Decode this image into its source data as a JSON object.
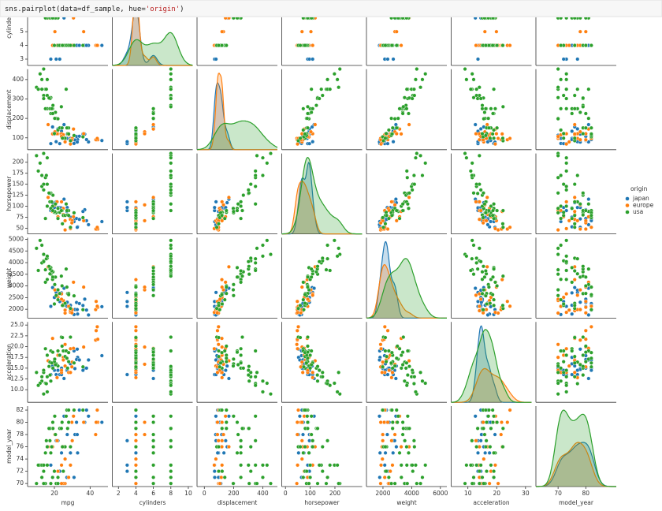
{
  "code": [
    "sns.pairplot(data=df_sample, hue=",
    "'origin'",
    ")"
  ],
  "chart_data": {
    "type": "pairplot",
    "legend_title": "origin",
    "legend_position": "right",
    "variables": [
      {
        "name": "mpg",
        "xlim": [
          5,
          50
        ],
        "xticks": [
          20,
          40
        ]
      },
      {
        "name": "cylinders",
        "xlim": [
          1.3,
          10.5
        ],
        "xticks": [
          2,
          4,
          6,
          8,
          10
        ],
        "ylim": [
          2.54,
          8.4
        ],
        "yticks": [
          3,
          4,
          5
        ]
      },
      {
        "name": "displacement",
        "xlim": [
          -50,
          500
        ],
        "xticks": [
          0,
          200,
          400
        ],
        "ylim": [
          39,
          453
        ],
        "yticks": [
          100,
          200,
          300,
          400
        ]
      },
      {
        "name": "horsepower",
        "xlim": [
          -15,
          310
        ],
        "xticks": [
          0,
          100,
          200
        ],
        "ylim": [
          37,
          220
        ],
        "yticks": [
          50,
          75,
          100,
          125,
          150,
          175,
          200
        ]
      },
      {
        "name": "weight",
        "xlim": [
          850,
          6450
        ],
        "xticks": [
          2000,
          4000,
          6000
        ],
        "ylim": [
          1620,
          5070
        ],
        "yticks": [
          2000,
          2500,
          3000,
          3500,
          4000,
          4500,
          5000
        ]
      },
      {
        "name": "acceleration",
        "xlim": [
          4.2,
          32.1
        ],
        "xticks": [
          10,
          20,
          30
        ],
        "ylim": [
          7.07,
          25.73
        ],
        "yticks": [
          {
            "value": 10,
            "label": "10.0"
          },
          {
            "value": 12.5,
            "label": "12.5"
          },
          {
            "value": 15,
            "label": "15.0"
          },
          {
            "value": 17.5,
            "label": "17.5"
          },
          {
            "value": 20,
            "label": "20.0"
          },
          {
            "value": 22.5,
            "label": "22.5"
          },
          {
            "value": 25,
            "label": "25.0"
          }
        ]
      },
      {
        "name": "model_year",
        "xlim": [
          62,
          91
        ],
        "xticks": [
          70,
          80
        ],
        "ylim": [
          69.5,
          82.65
        ],
        "yticks": [
          70,
          72,
          74,
          76,
          78,
          80,
          82
        ]
      }
    ],
    "series": [
      {
        "name": "japan",
        "color": "#1f77b4",
        "values": [
          [
            24,
            4,
            113,
            95,
            2372,
            15,
            70
          ],
          [
            27,
            4,
            97,
            88,
            2130,
            14.5,
            71
          ],
          [
            18,
            3,
            70,
            90,
            2124,
            13.5,
            73
          ],
          [
            31,
            4,
            71,
            65,
            1773,
            19,
            71
          ],
          [
            20,
            4,
            119,
            97,
            2506,
            14.5,
            72
          ],
          [
            23,
            3,
            70,
            97,
            2330,
            13.5,
            72
          ],
          [
            29,
            4,
            97,
            75,
            2171,
            16,
            75
          ],
          [
            24,
            4,
            134,
            96,
            2702,
            13.5,
            75
          ],
          [
            33,
            4,
            91,
            53,
            1795,
            17.5,
            75
          ],
          [
            19,
            6,
            156,
            108,
            2930,
            15.5,
            76
          ],
          [
            21,
            3,
            80,
            110,
            2720,
            13.5,
            77
          ],
          [
            31.5,
            4,
            89,
            71,
            1990,
            14.9,
            78
          ],
          [
            27.2,
            4,
            119,
            97,
            2300,
            14.7,
            78
          ],
          [
            22,
            6,
            146,
            97,
            2815,
            14.5,
            77
          ],
          [
            32.8,
            4,
            78,
            52,
            1985,
            19.4,
            78
          ],
          [
            39.1,
            4,
            79,
            58,
            1755,
            16.9,
            81
          ],
          [
            32.4,
            4,
            107,
            72,
            2290,
            17,
            80
          ],
          [
            46.6,
            4,
            86,
            65,
            2110,
            17.9,
            80
          ],
          [
            37,
            4,
            119,
            92,
            2434,
            15,
            80
          ],
          [
            34,
            4,
            108,
            70,
            2245,
            16.9,
            82
          ],
          [
            38,
            4,
            91,
            67,
            1965,
            15,
            82
          ],
          [
            36,
            4,
            120,
            88,
            2160,
            14.5,
            82
          ],
          [
            25.4,
            6,
            168,
            116,
            2900,
            12.6,
            81
          ]
        ]
      },
      {
        "name": "europe",
        "color": "#ff7f0e",
        "values": [
          [
            26,
            4,
            97,
            46,
            1835,
            20.5,
            70
          ],
          [
            25,
            4,
            104,
            95,
            2375,
            17.5,
            70
          ],
          [
            28,
            4,
            116,
            90,
            2123,
            14,
            71
          ],
          [
            22,
            4,
            121,
            76,
            2511,
            18,
            72
          ],
          [
            24,
            4,
            121,
            110,
            2660,
            14,
            73
          ],
          [
            29,
            4,
            68,
            49,
            1867,
            19.5,
            73
          ],
          [
            26,
            4,
            79,
            67,
            1963,
            15.5,
            74
          ],
          [
            25,
            4,
            116,
            81,
            2220,
            16.9,
            76
          ],
          [
            29,
            4,
            90,
            70,
            1937,
            14,
            76
          ],
          [
            21.5,
            4,
            121,
            110,
            2600,
            12.8,
            77
          ],
          [
            30,
            4,
            97,
            67,
            1985,
            16.4,
            77
          ],
          [
            16.5,
            6,
            168,
            120,
            3820,
            16.7,
            76
          ],
          [
            20.3,
            5,
            131,
            103,
            2830,
            15.9,
            78
          ],
          [
            43.1,
            4,
            90,
            48,
            1985,
            21.5,
            78
          ],
          [
            44.3,
            4,
            90,
            48,
            2085,
            21.7,
            80
          ],
          [
            29.8,
            4,
            89,
            62,
            1845,
            15.3,
            80
          ],
          [
            36.4,
            5,
            121,
            67,
            2950,
            19.9,
            80
          ],
          [
            43.4,
            4,
            90,
            48,
            2335,
            23.7,
            80
          ],
          [
            44,
            4,
            97,
            52,
            2130,
            24.6,
            82
          ],
          [
            30.7,
            6,
            145,
            76,
            3160,
            19.6,
            81
          ],
          [
            24,
            4,
            107,
            90,
            2430,
            14.5,
            70
          ],
          [
            19,
            4,
            120,
            88,
            3270,
            21.9,
            76
          ]
        ]
      },
      {
        "name": "usa",
        "color": "#2ca02c",
        "values": [
          [
            18,
            8,
            307,
            130,
            3504,
            12,
            70
          ],
          [
            15,
            8,
            350,
            165,
            3693,
            11.5,
            70
          ],
          [
            14,
            8,
            454,
            220,
            4354,
            9,
            70
          ],
          [
            10,
            8,
            360,
            215,
            4615,
            14,
            70
          ],
          [
            21,
            6,
            200,
            85,
            2587,
            16,
            70
          ],
          [
            22,
            6,
            198,
            95,
            2833,
            15.5,
            70
          ],
          [
            13,
            8,
            400,
            170,
            4746,
            12,
            71
          ],
          [
            19,
            6,
            250,
            100,
            3282,
            15,
            71
          ],
          [
            25,
            4,
            98,
            79,
            2164,
            19,
            72
          ],
          [
            12,
            8,
            429,
            198,
            4952,
            11.5,
            73
          ],
          [
            16,
            6,
            250,
            100,
            3278,
            18,
            73
          ],
          [
            13,
            8,
            350,
            145,
            3988,
            13,
            73
          ],
          [
            20,
            4,
            122,
            86,
            2226,
            16.5,
            72
          ],
          [
            14,
            8,
            318,
            150,
            4077,
            14,
            72
          ],
          [
            15,
            6,
            250,
            72,
            3158,
            19.5,
            75
          ],
          [
            18,
            6,
            225,
            95,
            3785,
            19,
            75
          ],
          [
            16,
            8,
            318,
            150,
            4190,
            13,
            76
          ],
          [
            22,
            4,
            140,
            72,
            2408,
            19,
            71
          ],
          [
            17.5,
            6,
            250,
            110,
            3520,
            16.4,
            77
          ],
          [
            26,
            4,
            98,
            79,
            2255,
            17.7,
            76
          ],
          [
            15.5,
            8,
            350,
            170,
            4165,
            11.4,
            77
          ],
          [
            19.2,
            8,
            267,
            125,
            3605,
            15,
            79
          ],
          [
            18.5,
            6,
            250,
            110,
            3645,
            16.2,
            76
          ],
          [
            23,
            4,
            151,
            86,
            2675,
            18,
            79
          ],
          [
            20.2,
            6,
            200,
            88,
            3060,
            17.1,
            81
          ],
          [
            27.4,
            4,
            121,
            80,
            2670,
            15,
            79
          ],
          [
            28,
            4,
            151,
            90,
            2678,
            16.5,
            80
          ],
          [
            24.3,
            4,
            151,
            90,
            3003,
            20.1,
            80
          ],
          [
            17.6,
            8,
            302,
            129,
            3725,
            13.4,
            79
          ],
          [
            26.6,
            8,
            350,
            105,
            3725,
            19,
            81
          ],
          [
            27,
            4,
            151,
            90,
            2950,
            17.3,
            82
          ],
          [
            36,
            4,
            105,
            74,
            1980,
            15.3,
            82
          ],
          [
            31,
            4,
            112,
            85,
            2575,
            16.2,
            82
          ],
          [
            28,
            4,
            120,
            79,
            2625,
            18.6,
            82
          ],
          [
            20.6,
            6,
            231,
            105,
            3380,
            15.8,
            78
          ],
          [
            11,
            8,
            350,
            180,
            3664,
            11,
            73
          ],
          [
            23.9,
            8,
            260,
            90,
            3420,
            22.2,
            79
          ],
          [
            17,
            8,
            305,
            130,
            3840,
            15.4,
            79
          ],
          [
            19.1,
            6,
            225,
            90,
            3381,
            18.7,
            80
          ],
          [
            16,
            8,
            400,
            210,
            4278,
            9.5,
            73
          ],
          [
            29,
            4,
            85,
            52,
            2035,
            22.2,
            76
          ],
          [
            24.5,
            4,
            98,
            60,
            2164,
            22.1,
            76
          ],
          [
            14,
            8,
            302,
            137,
            4042,
            14.5,
            73
          ]
        ]
      }
    ]
  }
}
